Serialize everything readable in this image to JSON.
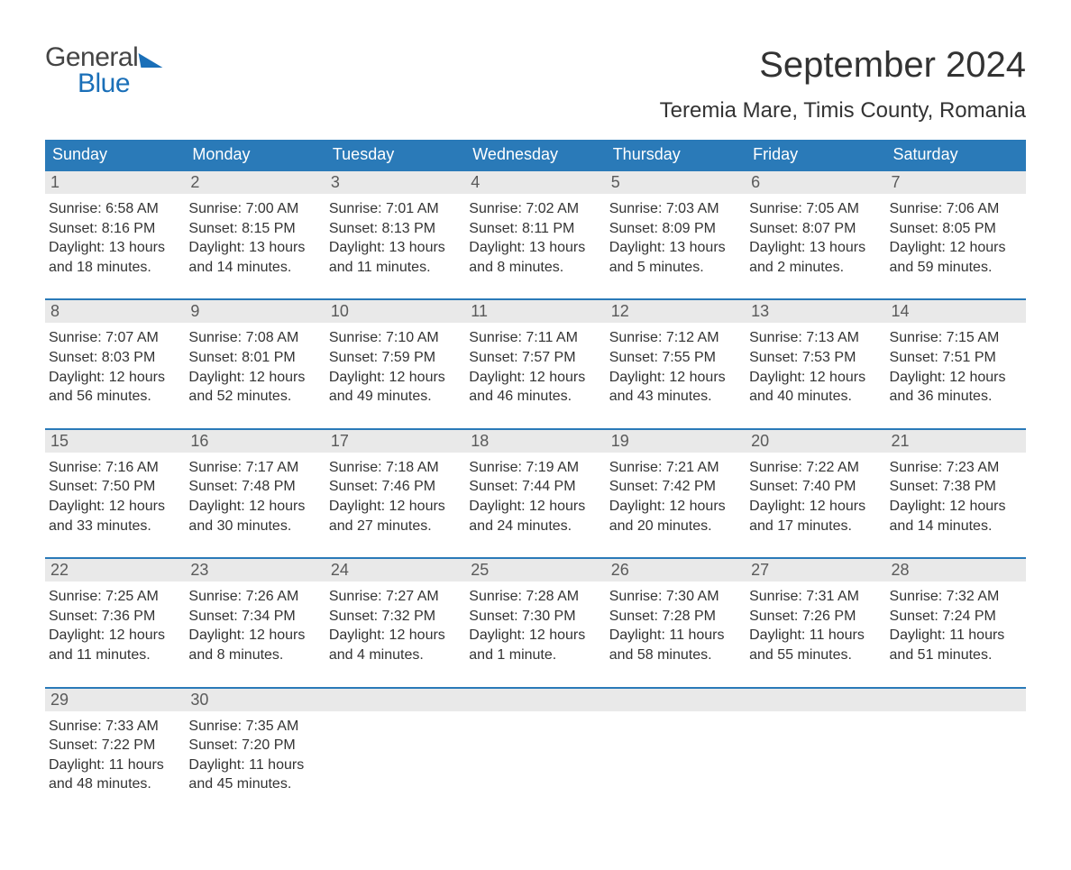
{
  "brand": {
    "line1": "General",
    "line2": "Blue",
    "logo_color": "#1a6fb8",
    "text_color": "#444444"
  },
  "title": {
    "month": "September 2024",
    "location": "Teremia Mare, Timis County, Romania"
  },
  "calendar": {
    "header_bg": "#2a7ab8",
    "header_fg": "#ffffff",
    "daynum_bg": "#e9e9e9",
    "daynum_fg": "#5a5a5a",
    "body_fg": "#333333",
    "border_color": "#2a7ab8",
    "days_of_week": [
      "Sunday",
      "Monday",
      "Tuesday",
      "Wednesday",
      "Thursday",
      "Friday",
      "Saturday"
    ],
    "weeks": [
      [
        {
          "num": "1",
          "sunrise": "Sunrise: 6:58 AM",
          "sunset": "Sunset: 8:16 PM",
          "day1": "Daylight: 13 hours",
          "day2": "and 18 minutes."
        },
        {
          "num": "2",
          "sunrise": "Sunrise: 7:00 AM",
          "sunset": "Sunset: 8:15 PM",
          "day1": "Daylight: 13 hours",
          "day2": "and 14 minutes."
        },
        {
          "num": "3",
          "sunrise": "Sunrise: 7:01 AM",
          "sunset": "Sunset: 8:13 PM",
          "day1": "Daylight: 13 hours",
          "day2": "and 11 minutes."
        },
        {
          "num": "4",
          "sunrise": "Sunrise: 7:02 AM",
          "sunset": "Sunset: 8:11 PM",
          "day1": "Daylight: 13 hours",
          "day2": "and 8 minutes."
        },
        {
          "num": "5",
          "sunrise": "Sunrise: 7:03 AM",
          "sunset": "Sunset: 8:09 PM",
          "day1": "Daylight: 13 hours",
          "day2": "and 5 minutes."
        },
        {
          "num": "6",
          "sunrise": "Sunrise: 7:05 AM",
          "sunset": "Sunset: 8:07 PM",
          "day1": "Daylight: 13 hours",
          "day2": "and 2 minutes."
        },
        {
          "num": "7",
          "sunrise": "Sunrise: 7:06 AM",
          "sunset": "Sunset: 8:05 PM",
          "day1": "Daylight: 12 hours",
          "day2": "and 59 minutes."
        }
      ],
      [
        {
          "num": "8",
          "sunrise": "Sunrise: 7:07 AM",
          "sunset": "Sunset: 8:03 PM",
          "day1": "Daylight: 12 hours",
          "day2": "and 56 minutes."
        },
        {
          "num": "9",
          "sunrise": "Sunrise: 7:08 AM",
          "sunset": "Sunset: 8:01 PM",
          "day1": "Daylight: 12 hours",
          "day2": "and 52 minutes."
        },
        {
          "num": "10",
          "sunrise": "Sunrise: 7:10 AM",
          "sunset": "Sunset: 7:59 PM",
          "day1": "Daylight: 12 hours",
          "day2": "and 49 minutes."
        },
        {
          "num": "11",
          "sunrise": "Sunrise: 7:11 AM",
          "sunset": "Sunset: 7:57 PM",
          "day1": "Daylight: 12 hours",
          "day2": "and 46 minutes."
        },
        {
          "num": "12",
          "sunrise": "Sunrise: 7:12 AM",
          "sunset": "Sunset: 7:55 PM",
          "day1": "Daylight: 12 hours",
          "day2": "and 43 minutes."
        },
        {
          "num": "13",
          "sunrise": "Sunrise: 7:13 AM",
          "sunset": "Sunset: 7:53 PM",
          "day1": "Daylight: 12 hours",
          "day2": "and 40 minutes."
        },
        {
          "num": "14",
          "sunrise": "Sunrise: 7:15 AM",
          "sunset": "Sunset: 7:51 PM",
          "day1": "Daylight: 12 hours",
          "day2": "and 36 minutes."
        }
      ],
      [
        {
          "num": "15",
          "sunrise": "Sunrise: 7:16 AM",
          "sunset": "Sunset: 7:50 PM",
          "day1": "Daylight: 12 hours",
          "day2": "and 33 minutes."
        },
        {
          "num": "16",
          "sunrise": "Sunrise: 7:17 AM",
          "sunset": "Sunset: 7:48 PM",
          "day1": "Daylight: 12 hours",
          "day2": "and 30 minutes."
        },
        {
          "num": "17",
          "sunrise": "Sunrise: 7:18 AM",
          "sunset": "Sunset: 7:46 PM",
          "day1": "Daylight: 12 hours",
          "day2": "and 27 minutes."
        },
        {
          "num": "18",
          "sunrise": "Sunrise: 7:19 AM",
          "sunset": "Sunset: 7:44 PM",
          "day1": "Daylight: 12 hours",
          "day2": "and 24 minutes."
        },
        {
          "num": "19",
          "sunrise": "Sunrise: 7:21 AM",
          "sunset": "Sunset: 7:42 PM",
          "day1": "Daylight: 12 hours",
          "day2": "and 20 minutes."
        },
        {
          "num": "20",
          "sunrise": "Sunrise: 7:22 AM",
          "sunset": "Sunset: 7:40 PM",
          "day1": "Daylight: 12 hours",
          "day2": "and 17 minutes."
        },
        {
          "num": "21",
          "sunrise": "Sunrise: 7:23 AM",
          "sunset": "Sunset: 7:38 PM",
          "day1": "Daylight: 12 hours",
          "day2": "and 14 minutes."
        }
      ],
      [
        {
          "num": "22",
          "sunrise": "Sunrise: 7:25 AM",
          "sunset": "Sunset: 7:36 PM",
          "day1": "Daylight: 12 hours",
          "day2": "and 11 minutes."
        },
        {
          "num": "23",
          "sunrise": "Sunrise: 7:26 AM",
          "sunset": "Sunset: 7:34 PM",
          "day1": "Daylight: 12 hours",
          "day2": "and 8 minutes."
        },
        {
          "num": "24",
          "sunrise": "Sunrise: 7:27 AM",
          "sunset": "Sunset: 7:32 PM",
          "day1": "Daylight: 12 hours",
          "day2": "and 4 minutes."
        },
        {
          "num": "25",
          "sunrise": "Sunrise: 7:28 AM",
          "sunset": "Sunset: 7:30 PM",
          "day1": "Daylight: 12 hours",
          "day2": "and 1 minute."
        },
        {
          "num": "26",
          "sunrise": "Sunrise: 7:30 AM",
          "sunset": "Sunset: 7:28 PM",
          "day1": "Daylight: 11 hours",
          "day2": "and 58 minutes."
        },
        {
          "num": "27",
          "sunrise": "Sunrise: 7:31 AM",
          "sunset": "Sunset: 7:26 PM",
          "day1": "Daylight: 11 hours",
          "day2": "and 55 minutes."
        },
        {
          "num": "28",
          "sunrise": "Sunrise: 7:32 AM",
          "sunset": "Sunset: 7:24 PM",
          "day1": "Daylight: 11 hours",
          "day2": "and 51 minutes."
        }
      ],
      [
        {
          "num": "29",
          "sunrise": "Sunrise: 7:33 AM",
          "sunset": "Sunset: 7:22 PM",
          "day1": "Daylight: 11 hours",
          "day2": "and 48 minutes."
        },
        {
          "num": "30",
          "sunrise": "Sunrise: 7:35 AM",
          "sunset": "Sunset: 7:20 PM",
          "day1": "Daylight: 11 hours",
          "day2": "and 45 minutes."
        },
        {
          "num": "",
          "sunrise": "",
          "sunset": "",
          "day1": "",
          "day2": ""
        },
        {
          "num": "",
          "sunrise": "",
          "sunset": "",
          "day1": "",
          "day2": ""
        },
        {
          "num": "",
          "sunrise": "",
          "sunset": "",
          "day1": "",
          "day2": ""
        },
        {
          "num": "",
          "sunrise": "",
          "sunset": "",
          "day1": "",
          "day2": ""
        },
        {
          "num": "",
          "sunrise": "",
          "sunset": "",
          "day1": "",
          "day2": ""
        }
      ]
    ]
  }
}
